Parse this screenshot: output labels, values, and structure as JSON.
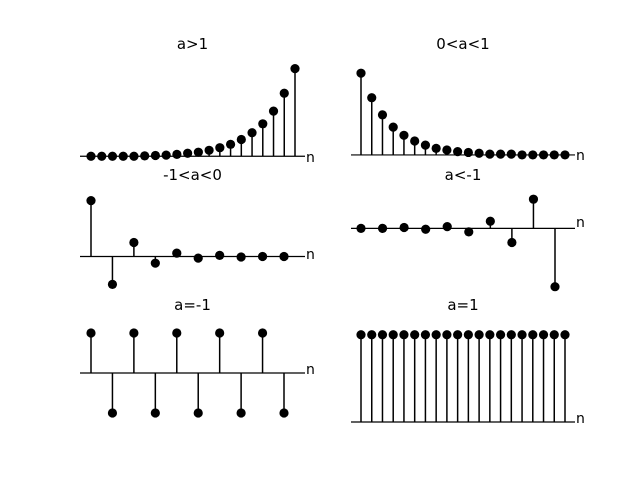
{
  "figure": {
    "background": "#ffffff",
    "marker_color": "#000000"
  },
  "chart_data": [
    {
      "type": "stem",
      "title": "a>1",
      "axis_label": "n",
      "x": [
        0,
        1,
        2,
        3,
        4,
        5,
        6,
        7,
        8,
        9,
        10,
        11,
        12,
        13,
        14,
        15,
        16,
        17,
        18,
        19
      ],
      "values": [
        0.0,
        0.0,
        0.0,
        0.0,
        0.0,
        0.01,
        0.02,
        0.03,
        0.05,
        0.08,
        0.11,
        0.16,
        0.23,
        0.32,
        0.45,
        0.63,
        0.87,
        1.21,
        1.69,
        2.35
      ],
      "ylim": [
        -0.1,
        2.5
      ]
    },
    {
      "type": "stem",
      "title": "0<a<1",
      "axis_label": "n",
      "x": [
        0,
        1,
        2,
        3,
        4,
        5,
        6,
        7,
        8,
        9,
        10,
        11,
        12,
        13,
        14,
        15,
        16,
        17,
        18,
        19
      ],
      "values": [
        1.0,
        0.7,
        0.49,
        0.34,
        0.24,
        0.17,
        0.12,
        0.08,
        0.06,
        0.04,
        0.03,
        0.02,
        0.01,
        0.01,
        0.01,
        0.0,
        0.0,
        0.0,
        0.0,
        0.0
      ],
      "ylim": [
        -0.05,
        1.1
      ]
    },
    {
      "type": "stem",
      "title": "-1<a<0",
      "axis_label": "n",
      "x": [
        0,
        1,
        2,
        3,
        4,
        5,
        6,
        7,
        8,
        9
      ],
      "values": [
        1.0,
        -0.5,
        0.25,
        -0.12,
        0.06,
        -0.03,
        0.02,
        -0.01,
        0.0,
        0.0
      ],
      "ylim": [
        -0.6,
        1.1
      ]
    },
    {
      "type": "stem",
      "title": "a<-1",
      "axis_label": "n",
      "x": [
        0,
        1,
        2,
        3,
        4,
        5,
        6,
        7,
        8,
        9
      ],
      "values": [
        0.0,
        0.0,
        0.01,
        -0.01,
        0.02,
        -0.04,
        0.08,
        -0.16,
        0.33,
        -0.66
      ],
      "ylim": [
        -0.72,
        0.4
      ]
    },
    {
      "type": "stem",
      "title": "a=-1",
      "axis_label": "n",
      "x": [
        0,
        1,
        2,
        3,
        4,
        5,
        6,
        7,
        8,
        9
      ],
      "values": [
        1,
        -1,
        1,
        -1,
        1,
        -1,
        1,
        -1,
        1,
        -1
      ],
      "ylim": [
        -1.2,
        1.2
      ]
    },
    {
      "type": "stem",
      "title": "a=1",
      "axis_label": "n",
      "x": [
        0,
        1,
        2,
        3,
        4,
        5,
        6,
        7,
        8,
        9,
        10,
        11,
        12,
        13,
        14,
        15,
        16,
        17,
        18,
        19
      ],
      "values": [
        1,
        1,
        1,
        1,
        1,
        1,
        1,
        1,
        1,
        1,
        1,
        1,
        1,
        1,
        1,
        1,
        1,
        1,
        1,
        1
      ],
      "ylim": [
        0,
        1.1
      ]
    }
  ]
}
